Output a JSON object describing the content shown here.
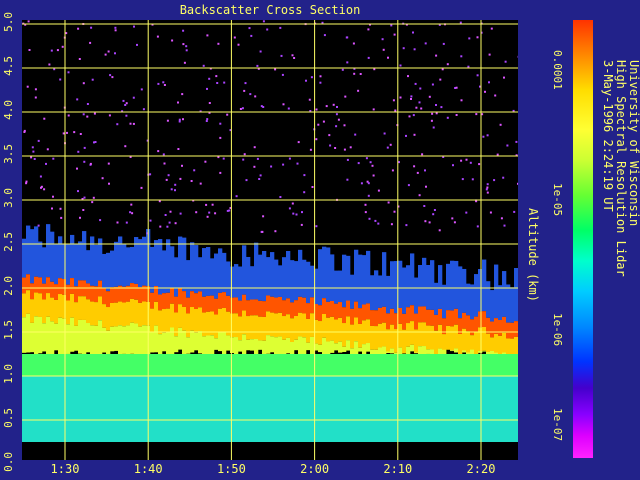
{
  "chart_data": {
    "type": "heatmap",
    "title": "Backscatter Cross Section",
    "ylabel": "Altitude (km)",
    "xlabel": "",
    "y_ticks": [
      "0.0",
      "0.5",
      "1.0",
      "1.5",
      "2.0",
      "2.5",
      "3.0",
      "3.5",
      "4.0",
      "4.5",
      "5.0"
    ],
    "x_ticks": [
      "1:30",
      "1:40",
      "1:50",
      "2:00",
      "2:10",
      "2:20"
    ],
    "ylim": [
      0,
      5
    ],
    "colorbar": {
      "scale": "log",
      "ticks": [
        "0.0001",
        "1e-05",
        "1e-06",
        "1e-07"
      ]
    },
    "grid": true,
    "layers": [
      {
        "name": "aerosol-layer-top-km",
        "values_by_time": [
          2.1,
          2.05,
          2.0,
          1.95,
          1.9,
          1.85,
          1.8,
          1.75,
          1.7,
          1.65
        ]
      },
      {
        "name": "data-bottom-km",
        "value": 0.25
      }
    ],
    "colors": {
      "background": "#22228a",
      "plot": "#000000",
      "grid": "#ffff66",
      "text": "#ffff66"
    }
  },
  "credits": {
    "line1": "University of Wisconsin",
    "line2": "High Spectral Resolution Lidar",
    "line3": "3-May-1996  2:24:19 UT"
  }
}
